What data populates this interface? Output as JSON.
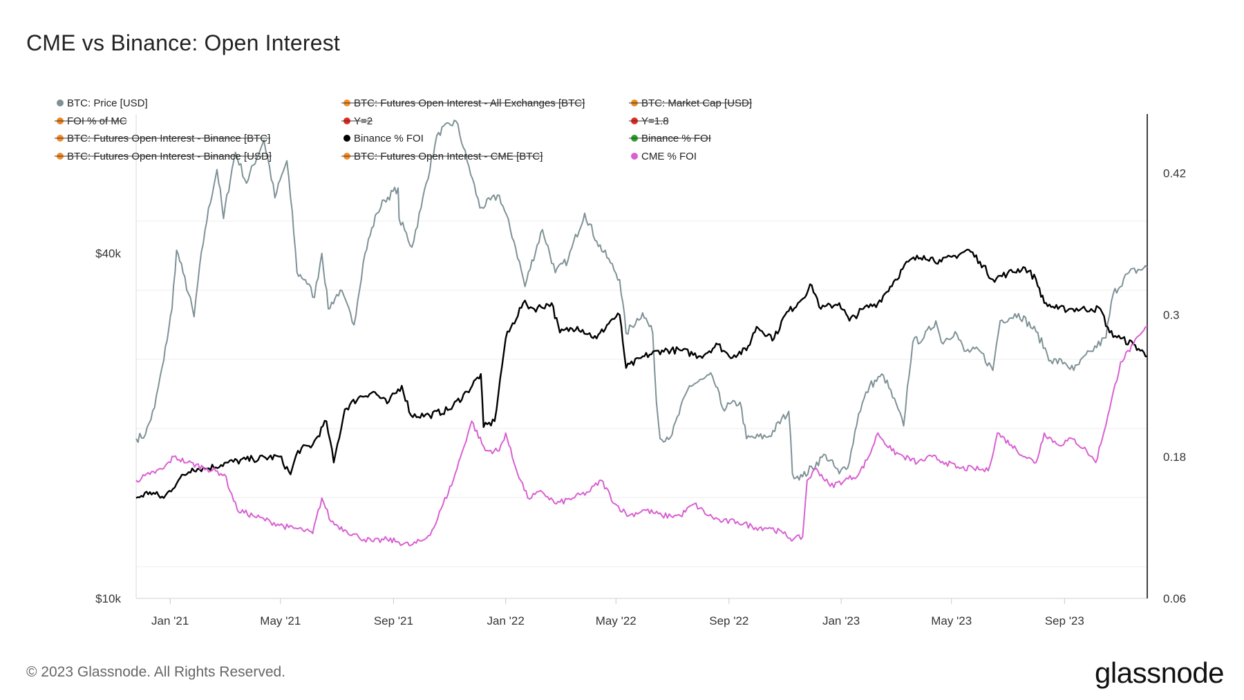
{
  "title": "CME vs Binance: Open Interest",
  "footer": "© 2023 Glassnode. All Rights Reserved.",
  "brand": "glassnode",
  "chart_data": {
    "type": "line",
    "title": "CME vs Binance: Open Interest",
    "x_range": [
      "2020-11-25",
      "2023-11-30"
    ],
    "x_ticks": [
      {
        "date": "2021-01-01",
        "label": "Jan '21"
      },
      {
        "date": "2021-05-01",
        "label": "May '21"
      },
      {
        "date": "2021-09-01",
        "label": "Sep '21"
      },
      {
        "date": "2022-01-01",
        "label": "Jan '22"
      },
      {
        "date": "2022-05-01",
        "label": "May '22"
      },
      {
        "date": "2022-09-01",
        "label": "Sep '22"
      },
      {
        "date": "2023-01-01",
        "label": "Jan '23"
      },
      {
        "date": "2023-05-01",
        "label": "May '23"
      },
      {
        "date": "2023-09-01",
        "label": "Sep '23"
      }
    ],
    "left_axis": {
      "scale": "log",
      "range": [
        10000,
        70000
      ],
      "ticks": [
        {
          "value": 40000,
          "label": "$40k"
        },
        {
          "value": 10000,
          "label": "$10k"
        }
      ]
    },
    "right_axis": {
      "scale": "linear",
      "range": [
        0.06,
        0.47
      ],
      "ticks": [
        {
          "value": 0.42,
          "label": "0.42"
        },
        {
          "value": 0.3,
          "label": "0.3"
        },
        {
          "value": 0.18,
          "label": "0.18"
        },
        {
          "value": 0.06,
          "label": "0.06"
        }
      ]
    },
    "grid": true,
    "legend_position": "top-left",
    "legend": [
      {
        "label": "BTC: Price [USD]",
        "color": "#7e9196",
        "hidden": false
      },
      {
        "label": "BTC: Futures Open Interest - All Exchanges [BTC]",
        "color": "#f28c28",
        "hidden": true
      },
      {
        "label": "BTC: Market Cap [USD]",
        "color": "#e88a1c",
        "hidden": true
      },
      {
        "label": "FOI % of MC",
        "color": "#f0841c",
        "hidden": true
      },
      {
        "label": "Y=2",
        "color": "#e8271e",
        "hidden": true
      },
      {
        "label": "Y=1.8",
        "color": "#e8271e",
        "hidden": true
      },
      {
        "label": "BTC: Futures Open Interest - Binance [BTC]",
        "color": "#f28c28",
        "hidden": true
      },
      {
        "label": "Binance % FOI",
        "color": "#000000",
        "hidden": false
      },
      {
        "label": "Binance % FOI",
        "color": "#2ca02c",
        "hidden": true
      },
      {
        "label": "BTC: Futures Open Interest - Binance [USD]",
        "color": "#f28c28",
        "hidden": true
      },
      {
        "label": "BTC: Futures Open Interest - CME [BTC]",
        "color": "#f28c28",
        "hidden": true
      },
      {
        "label": "CME % FOI",
        "color": "#d95fd2",
        "hidden": false
      }
    ],
    "series": [
      {
        "name": "BTC: Price [USD]",
        "axis": "left",
        "color": "#7e9196",
        "points": [
          [
            "2020-11-25",
            19000
          ],
          [
            "2020-12-05",
            19300
          ],
          [
            "2020-12-15",
            21500
          ],
          [
            "2020-12-25",
            26000
          ],
          [
            "2021-01-03",
            32000
          ],
          [
            "2021-01-08",
            40500
          ],
          [
            "2021-01-15",
            37000
          ],
          [
            "2021-01-27",
            31000
          ],
          [
            "2021-02-08",
            44000
          ],
          [
            "2021-02-21",
            56000
          ],
          [
            "2021-02-28",
            46000
          ],
          [
            "2021-03-13",
            60000
          ],
          [
            "2021-03-25",
            53000
          ],
          [
            "2021-04-13",
            63000
          ],
          [
            "2021-04-25",
            50000
          ],
          [
            "2021-05-08",
            58000
          ],
          [
            "2021-05-12",
            50000
          ],
          [
            "2021-05-19",
            37000
          ],
          [
            "2021-05-28",
            36000
          ],
          [
            "2021-06-07",
            33500
          ],
          [
            "2021-06-15",
            40000
          ],
          [
            "2021-06-22",
            32000
          ],
          [
            "2021-07-05",
            34500
          ],
          [
            "2021-07-20",
            30000
          ],
          [
            "2021-08-01",
            40000
          ],
          [
            "2021-08-14",
            47000
          ],
          [
            "2021-08-22",
            49500
          ],
          [
            "2021-09-06",
            52000
          ],
          [
            "2021-09-07",
            46000
          ],
          [
            "2021-09-21",
            41000
          ],
          [
            "2021-10-01",
            48000
          ],
          [
            "2021-10-20",
            65000
          ],
          [
            "2021-11-08",
            68000
          ],
          [
            "2021-11-20",
            58000
          ],
          [
            "2021-12-04",
            48000
          ],
          [
            "2021-12-25",
            50500
          ],
          [
            "2022-01-10",
            42000
          ],
          [
            "2022-01-22",
            35000
          ],
          [
            "2022-02-10",
            44000
          ],
          [
            "2022-02-24",
            37000
          ],
          [
            "2022-03-10",
            39000
          ],
          [
            "2022-03-28",
            47000
          ],
          [
            "2022-04-10",
            42000
          ],
          [
            "2022-04-25",
            38500
          ],
          [
            "2022-05-05",
            36000
          ],
          [
            "2022-05-12",
            29000
          ],
          [
            "2022-05-30",
            31500
          ],
          [
            "2022-06-10",
            29000
          ],
          [
            "2022-06-14",
            22000
          ],
          [
            "2022-06-18",
            19000
          ],
          [
            "2022-07-01",
            19300
          ],
          [
            "2022-07-20",
            23500
          ],
          [
            "2022-08-14",
            24400
          ],
          [
            "2022-08-25",
            21500
          ],
          [
            "2022-09-13",
            22000
          ],
          [
            "2022-09-20",
            19000
          ],
          [
            "2022-10-15",
            19200
          ],
          [
            "2022-11-05",
            21200
          ],
          [
            "2022-11-09",
            16500
          ],
          [
            "2022-11-20",
            16300
          ],
          [
            "2022-12-15",
            17800
          ],
          [
            "2022-12-30",
            16500
          ],
          [
            "2023-01-10",
            17300
          ],
          [
            "2023-01-20",
            21000
          ],
          [
            "2023-02-01",
            23500
          ],
          [
            "2023-02-16",
            24500
          ],
          [
            "2023-03-10",
            20000
          ],
          [
            "2023-03-20",
            28000
          ],
          [
            "2023-04-01",
            28500
          ],
          [
            "2023-04-14",
            30500
          ],
          [
            "2023-04-20",
            28000
          ],
          [
            "2023-05-05",
            29200
          ],
          [
            "2023-05-15",
            27000
          ],
          [
            "2023-06-01",
            27000
          ],
          [
            "2023-06-15",
            25000
          ],
          [
            "2023-06-23",
            30500
          ],
          [
            "2023-07-13",
            31400
          ],
          [
            "2023-08-01",
            29200
          ],
          [
            "2023-08-17",
            26000
          ],
          [
            "2023-09-01",
            25800
          ],
          [
            "2023-09-11",
            25000
          ],
          [
            "2023-09-30",
            27000
          ],
          [
            "2023-10-16",
            28500
          ],
          [
            "2023-10-24",
            34000
          ],
          [
            "2023-11-10",
            37000
          ],
          [
            "2023-11-30",
            37800
          ]
        ]
      },
      {
        "name": "Binance % FOI",
        "axis": "right",
        "color": "#000000",
        "points": [
          [
            "2020-11-25",
            0.145
          ],
          [
            "2020-12-10",
            0.15
          ],
          [
            "2020-12-25",
            0.145
          ],
          [
            "2021-01-10",
            0.16
          ],
          [
            "2021-01-25",
            0.17
          ],
          [
            "2021-02-10",
            0.17
          ],
          [
            "2021-03-05",
            0.175
          ],
          [
            "2021-04-01",
            0.178
          ],
          [
            "2021-04-30",
            0.18
          ],
          [
            "2021-05-12",
            0.165
          ],
          [
            "2021-05-20",
            0.185
          ],
          [
            "2021-06-05",
            0.19
          ],
          [
            "2021-06-20",
            0.21
          ],
          [
            "2021-06-28",
            0.175
          ],
          [
            "2021-07-10",
            0.22
          ],
          [
            "2021-07-25",
            0.23
          ],
          [
            "2021-08-10",
            0.235
          ],
          [
            "2021-08-25",
            0.225
          ],
          [
            "2021-09-10",
            0.24
          ],
          [
            "2021-09-20",
            0.215
          ],
          [
            "2021-10-10",
            0.215
          ],
          [
            "2021-11-01",
            0.22
          ],
          [
            "2021-11-20",
            0.235
          ],
          [
            "2021-12-05",
            0.25
          ],
          [
            "2021-12-08",
            0.205
          ],
          [
            "2021-12-20",
            0.21
          ],
          [
            "2022-01-01",
            0.28
          ],
          [
            "2022-01-20",
            0.31
          ],
          [
            "2022-02-01",
            0.305
          ],
          [
            "2022-02-20",
            0.31
          ],
          [
            "2022-03-01",
            0.285
          ],
          [
            "2022-03-20",
            0.29
          ],
          [
            "2022-04-10",
            0.28
          ],
          [
            "2022-04-25",
            0.295
          ],
          [
            "2022-05-05",
            0.3
          ],
          [
            "2022-05-12",
            0.255
          ],
          [
            "2022-06-01",
            0.265
          ],
          [
            "2022-06-20",
            0.27
          ],
          [
            "2022-07-10",
            0.27
          ],
          [
            "2022-08-01",
            0.265
          ],
          [
            "2022-08-20",
            0.275
          ],
          [
            "2022-09-01",
            0.265
          ],
          [
            "2022-09-20",
            0.27
          ],
          [
            "2022-10-01",
            0.29
          ],
          [
            "2022-10-20",
            0.28
          ],
          [
            "2022-11-01",
            0.3
          ],
          [
            "2022-11-15",
            0.31
          ],
          [
            "2022-11-30",
            0.325
          ],
          [
            "2022-12-10",
            0.305
          ],
          [
            "2022-12-30",
            0.31
          ],
          [
            "2023-01-10",
            0.295
          ],
          [
            "2023-01-25",
            0.305
          ],
          [
            "2023-02-10",
            0.31
          ],
          [
            "2023-03-01",
            0.33
          ],
          [
            "2023-03-15",
            0.345
          ],
          [
            "2023-04-01",
            0.35
          ],
          [
            "2023-04-20",
            0.345
          ],
          [
            "2023-05-05",
            0.35
          ],
          [
            "2023-05-20",
            0.355
          ],
          [
            "2023-06-01",
            0.345
          ],
          [
            "2023-06-15",
            0.33
          ],
          [
            "2023-07-01",
            0.335
          ],
          [
            "2023-07-20",
            0.34
          ],
          [
            "2023-08-01",
            0.33
          ],
          [
            "2023-08-10",
            0.31
          ],
          [
            "2023-08-25",
            0.305
          ],
          [
            "2023-09-10",
            0.305
          ],
          [
            "2023-09-30",
            0.305
          ],
          [
            "2023-10-10",
            0.305
          ],
          [
            "2023-10-20",
            0.285
          ],
          [
            "2023-11-01",
            0.28
          ],
          [
            "2023-11-15",
            0.275
          ],
          [
            "2023-11-30",
            0.265
          ]
        ]
      },
      {
        "name": "CME % FOI",
        "axis": "right",
        "color": "#d95fd2",
        "points": [
          [
            "2020-11-25",
            0.16
          ],
          [
            "2020-12-10",
            0.165
          ],
          [
            "2020-12-25",
            0.17
          ],
          [
            "2021-01-05",
            0.18
          ],
          [
            "2021-01-20",
            0.175
          ],
          [
            "2021-02-10",
            0.17
          ],
          [
            "2021-03-01",
            0.165
          ],
          [
            "2021-03-15",
            0.135
          ],
          [
            "2021-04-01",
            0.13
          ],
          [
            "2021-04-20",
            0.125
          ],
          [
            "2021-05-10",
            0.12
          ],
          [
            "2021-05-25",
            0.118
          ],
          [
            "2021-06-05",
            0.115
          ],
          [
            "2021-06-15",
            0.145
          ],
          [
            "2021-06-25",
            0.125
          ],
          [
            "2021-07-10",
            0.118
          ],
          [
            "2021-07-25",
            0.112
          ],
          [
            "2021-08-10",
            0.108
          ],
          [
            "2021-08-25",
            0.11
          ],
          [
            "2021-09-05",
            0.108
          ],
          [
            "2021-09-20",
            0.105
          ],
          [
            "2021-10-05",
            0.11
          ],
          [
            "2021-10-15",
            0.12
          ],
          [
            "2021-10-25",
            0.14
          ],
          [
            "2021-11-05",
            0.16
          ],
          [
            "2021-11-15",
            0.185
          ],
          [
            "2021-11-25",
            0.21
          ],
          [
            "2021-12-10",
            0.185
          ],
          [
            "2021-12-25",
            0.185
          ],
          [
            "2022-01-01",
            0.2
          ],
          [
            "2022-01-10",
            0.175
          ],
          [
            "2022-01-25",
            0.145
          ],
          [
            "2022-02-10",
            0.15
          ],
          [
            "2022-02-25",
            0.14
          ],
          [
            "2022-03-15",
            0.145
          ],
          [
            "2022-04-01",
            0.15
          ],
          [
            "2022-04-15",
            0.16
          ],
          [
            "2022-04-30",
            0.14
          ],
          [
            "2022-05-15",
            0.13
          ],
          [
            "2022-06-01",
            0.135
          ],
          [
            "2022-06-20",
            0.13
          ],
          [
            "2022-07-10",
            0.13
          ],
          [
            "2022-07-25",
            0.14
          ],
          [
            "2022-08-10",
            0.13
          ],
          [
            "2022-08-25",
            0.125
          ],
          [
            "2022-09-10",
            0.125
          ],
          [
            "2022-09-30",
            0.12
          ],
          [
            "2022-10-15",
            0.12
          ],
          [
            "2022-10-30",
            0.115
          ],
          [
            "2022-11-10",
            0.11
          ],
          [
            "2022-11-20",
            0.112
          ],
          [
            "2022-11-25",
            0.16
          ],
          [
            "2022-12-05",
            0.17
          ],
          [
            "2022-12-20",
            0.155
          ],
          [
            "2023-01-05",
            0.16
          ],
          [
            "2023-01-20",
            0.165
          ],
          [
            "2023-01-31",
            0.18
          ],
          [
            "2023-02-10",
            0.2
          ],
          [
            "2023-02-25",
            0.185
          ],
          [
            "2023-03-10",
            0.18
          ],
          [
            "2023-03-25",
            0.175
          ],
          [
            "2023-04-10",
            0.18
          ],
          [
            "2023-04-25",
            0.175
          ],
          [
            "2023-05-10",
            0.17
          ],
          [
            "2023-05-25",
            0.17
          ],
          [
            "2023-06-10",
            0.168
          ],
          [
            "2023-06-20",
            0.2
          ],
          [
            "2023-07-05",
            0.19
          ],
          [
            "2023-07-20",
            0.18
          ],
          [
            "2023-08-01",
            0.175
          ],
          [
            "2023-08-10",
            0.2
          ],
          [
            "2023-08-25",
            0.19
          ],
          [
            "2023-09-10",
            0.195
          ],
          [
            "2023-09-25",
            0.185
          ],
          [
            "2023-10-05",
            0.175
          ],
          [
            "2023-10-20",
            0.22
          ],
          [
            "2023-11-01",
            0.26
          ],
          [
            "2023-11-15",
            0.275
          ],
          [
            "2023-11-30",
            0.29
          ]
        ]
      }
    ]
  }
}
